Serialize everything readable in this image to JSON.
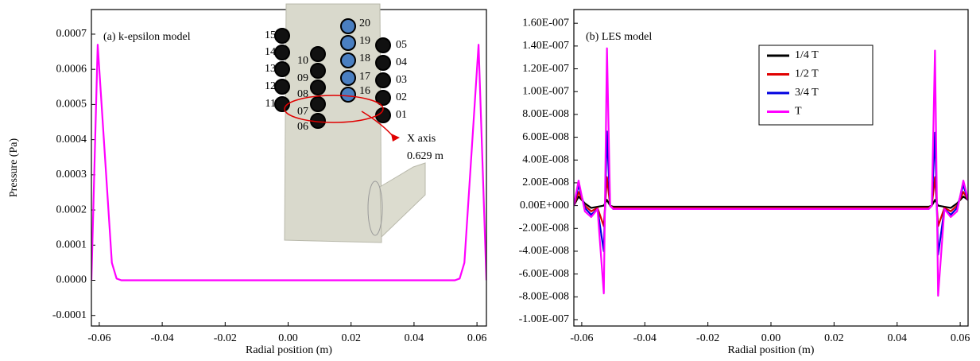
{
  "chart_data": [
    {
      "type": "line",
      "title": "(a) k-epsilon model",
      "xlabel": "Radial position (m)",
      "ylabel": "Pressure (Pa)",
      "x": [
        -0.0625,
        -0.0605,
        -0.056,
        -0.0545,
        -0.053,
        0,
        0.053,
        0.0545,
        0.056,
        0.0605,
        0.063
      ],
      "values": [
        0,
        0.00067,
        5e-05,
        5e-06,
        0,
        0,
        0,
        5e-06,
        5e-05,
        0.00067,
        0
      ],
      "color": "#ff00ff",
      "xlim": [
        -0.0625,
        0.063
      ],
      "xticks": [
        -0.06,
        -0.04,
        -0.02,
        {
          "value": 0,
          "label": "0.00"
        },
        0.02,
        0.04,
        0.06
      ],
      "ylim": [
        -0.00013,
        0.00077
      ],
      "yticks": [
        -0.0001,
        {
          "value": 0,
          "label": "0.0000"
        },
        0.0001,
        0.0002,
        0.0003,
        0.0004,
        0.0005,
        0.0006,
        0.0007
      ],
      "inset_labels": [
        "01",
        "02",
        "03",
        "04",
        "05",
        "06",
        "07",
        "08",
        "09",
        "10",
        "11",
        "12",
        "13",
        "14",
        "15",
        "16",
        "17",
        "18",
        "19",
        "20"
      ],
      "annotations": [
        "X axis",
        "0.629 m"
      ]
    },
    {
      "type": "line",
      "title": "(b) LES model",
      "xlabel": "Radial position (m)",
      "legend": "upper right",
      "x": [
        -0.0625,
        -0.061,
        -0.059,
        -0.057,
        -0.055,
        -0.053,
        -0.052,
        -0.051,
        -0.05,
        -0.048,
        0,
        0.048,
        0.05,
        0.051,
        0.052,
        0.053,
        0.055,
        0.057,
        0.059,
        0.061,
        0.0625
      ],
      "series": [
        {
          "name": "1/4 T",
          "color": "#000000",
          "values": [
            0,
            8e-09,
            2e-09,
            -2e-09,
            -1e-09,
            0,
            5e-09,
            0,
            -1e-09,
            -1e-09,
            -1e-09,
            -1e-09,
            -1e-09,
            0,
            5e-09,
            0,
            -1e-09,
            -2e-09,
            2e-09,
            8e-09,
            5e-09
          ]
        },
        {
          "name": "1/2 T",
          "color": "#e00000",
          "values": [
            0,
            1.2e-08,
            0,
            -5e-09,
            -2e-09,
            -1.8e-08,
            2.5e-08,
            0,
            -2e-09,
            -2e-09,
            -2e-09,
            -2e-09,
            -2e-09,
            0,
            2.5e-08,
            -1.8e-08,
            -2e-09,
            -5e-09,
            0,
            1.2e-08,
            5e-09
          ]
        },
        {
          "name": "3/4 T",
          "color": "#0000e0",
          "values": [
            0,
            1.8e-08,
            -2e-09,
            -8e-09,
            -3e-09,
            -4e-08,
            6.5e-08,
            0,
            -3e-09,
            -3e-09,
            -3e-09,
            -3e-09,
            -3e-09,
            0,
            6.4e-08,
            -4.3e-08,
            -3e-09,
            -8e-09,
            -2e-09,
            1.8e-08,
            5e-09
          ]
        },
        {
          "name": "T",
          "color": "#ff00ff",
          "values": [
            0,
            2.2e-08,
            -5e-09,
            -1e-08,
            -3e-09,
            -7.7e-08,
            1.38e-07,
            0,
            -3e-09,
            -3e-09,
            -3e-09,
            -3e-09,
            -3e-09,
            0,
            1.36e-07,
            -7.9e-08,
            -3e-09,
            -1e-08,
            -5e-09,
            2.2e-08,
            5e-09
          ]
        }
      ],
      "xlim": [
        -0.0625,
        0.0625
      ],
      "xticks": [
        -0.06,
        -0.04,
        -0.02,
        {
          "value": 0,
          "label": "0.00"
        },
        0.02,
        0.04,
        0.06
      ],
      "ylim": [
        -1.056e-07,
        1.72e-07
      ],
      "yticks": [
        {
          "value": -1e-07,
          "label": "-1.00E-007"
        },
        {
          "value": -8e-08,
          "label": "-8.00E-008"
        },
        {
          "value": -6e-08,
          "label": "-6.00E-008"
        },
        {
          "value": -4e-08,
          "label": "-4.00E-008"
        },
        {
          "value": -2e-08,
          "label": "-2.00E-008"
        },
        {
          "value": 0,
          "label": "0.00E+000"
        },
        {
          "value": 2e-08,
          "label": "2.00E-008"
        },
        {
          "value": 4e-08,
          "label": "4.00E-008"
        },
        {
          "value": 6e-08,
          "label": "6.00E-008"
        },
        {
          "value": 8e-08,
          "label": "8.00E-008"
        },
        {
          "value": 1e-07,
          "label": "1.00E-007"
        },
        {
          "value": 1.2e-07,
          "label": "1.20E-007"
        },
        {
          "value": 1.4e-07,
          "label": "1.40E-007"
        },
        {
          "value": 1.6e-07,
          "label": "1.60E-007"
        }
      ]
    }
  ]
}
